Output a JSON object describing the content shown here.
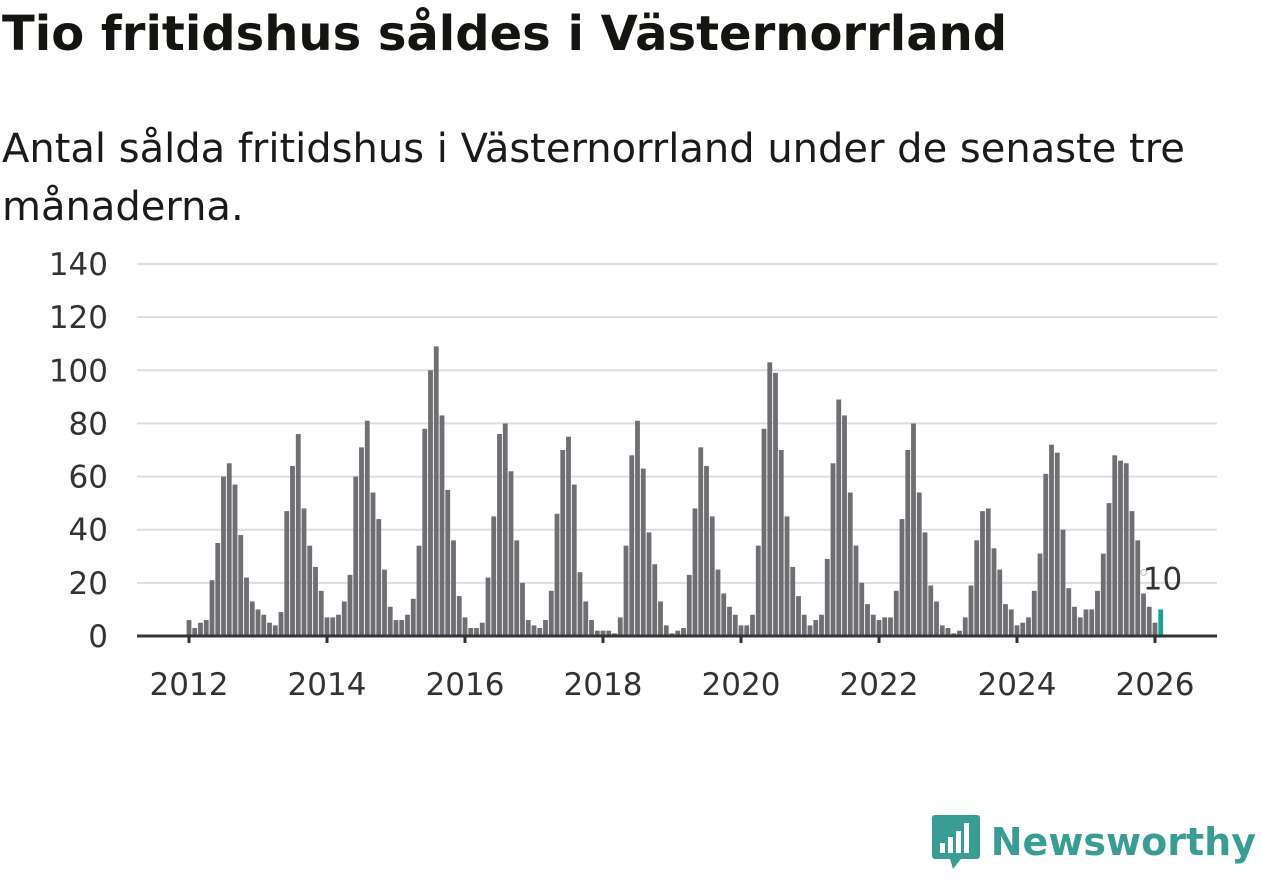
{
  "title": "Tio fritidshus såldes i Västernorrland",
  "subtitle": "Antal sålda fritidshus i Västernorrland under de senaste tre månaderna.",
  "brand": "Newsworthy",
  "colors": {
    "bar": "#6e6e73",
    "highlight": "#18a39a",
    "grid": "#dddddd",
    "brand": "#3a9d95"
  },
  "chart_data": {
    "type": "bar",
    "title": "Tio fritidshus såldes i Västernorrland",
    "xlabel": "",
    "ylabel": "",
    "ylim": [
      0,
      140
    ],
    "yticks": [
      0,
      20,
      40,
      60,
      80,
      100,
      120,
      140
    ],
    "xticks": [
      "2012",
      "2014",
      "2016",
      "2018",
      "2020",
      "2022",
      "2024",
      "2026"
    ],
    "start": "2012-01",
    "frequency": "monthly",
    "values": [
      6,
      3,
      5,
      6,
      21,
      35,
      60,
      65,
      57,
      38,
      22,
      13,
      10,
      8,
      5,
      4,
      9,
      47,
      64,
      76,
      48,
      34,
      26,
      17,
      7,
      7,
      8,
      13,
      23,
      60,
      71,
      81,
      54,
      44,
      25,
      11,
      6,
      6,
      8,
      14,
      34,
      78,
      100,
      109,
      83,
      55,
      36,
      15,
      7,
      3,
      3,
      5,
      22,
      45,
      76,
      80,
      62,
      36,
      20,
      6,
      4,
      3,
      6,
      17,
      46,
      70,
      75,
      57,
      24,
      13,
      6,
      2,
      2,
      2,
      1,
      7,
      34,
      68,
      81,
      63,
      39,
      27,
      13,
      4,
      1,
      2,
      3,
      23,
      48,
      71,
      64,
      45,
      25,
      16,
      11,
      8,
      4,
      4,
      8,
      34,
      78,
      103,
      99,
      70,
      45,
      26,
      15,
      8,
      4,
      6,
      8,
      29,
      65,
      89,
      83,
      54,
      34,
      20,
      12,
      8,
      6,
      7,
      7,
      17,
      44,
      70,
      80,
      54,
      39,
      19,
      13,
      4,
      3,
      1,
      2,
      7,
      19,
      36,
      47,
      48,
      33,
      25,
      12,
      10,
      4,
      5,
      7,
      17,
      31,
      61,
      72,
      69,
      40,
      18,
      11,
      7,
      10,
      10,
      17,
      31,
      50,
      68,
      66,
      65,
      47,
      36,
      16,
      11,
      5,
      10
    ],
    "annotation": {
      "label": "10",
      "value": 10,
      "target": "latest"
    },
    "grid": true
  }
}
